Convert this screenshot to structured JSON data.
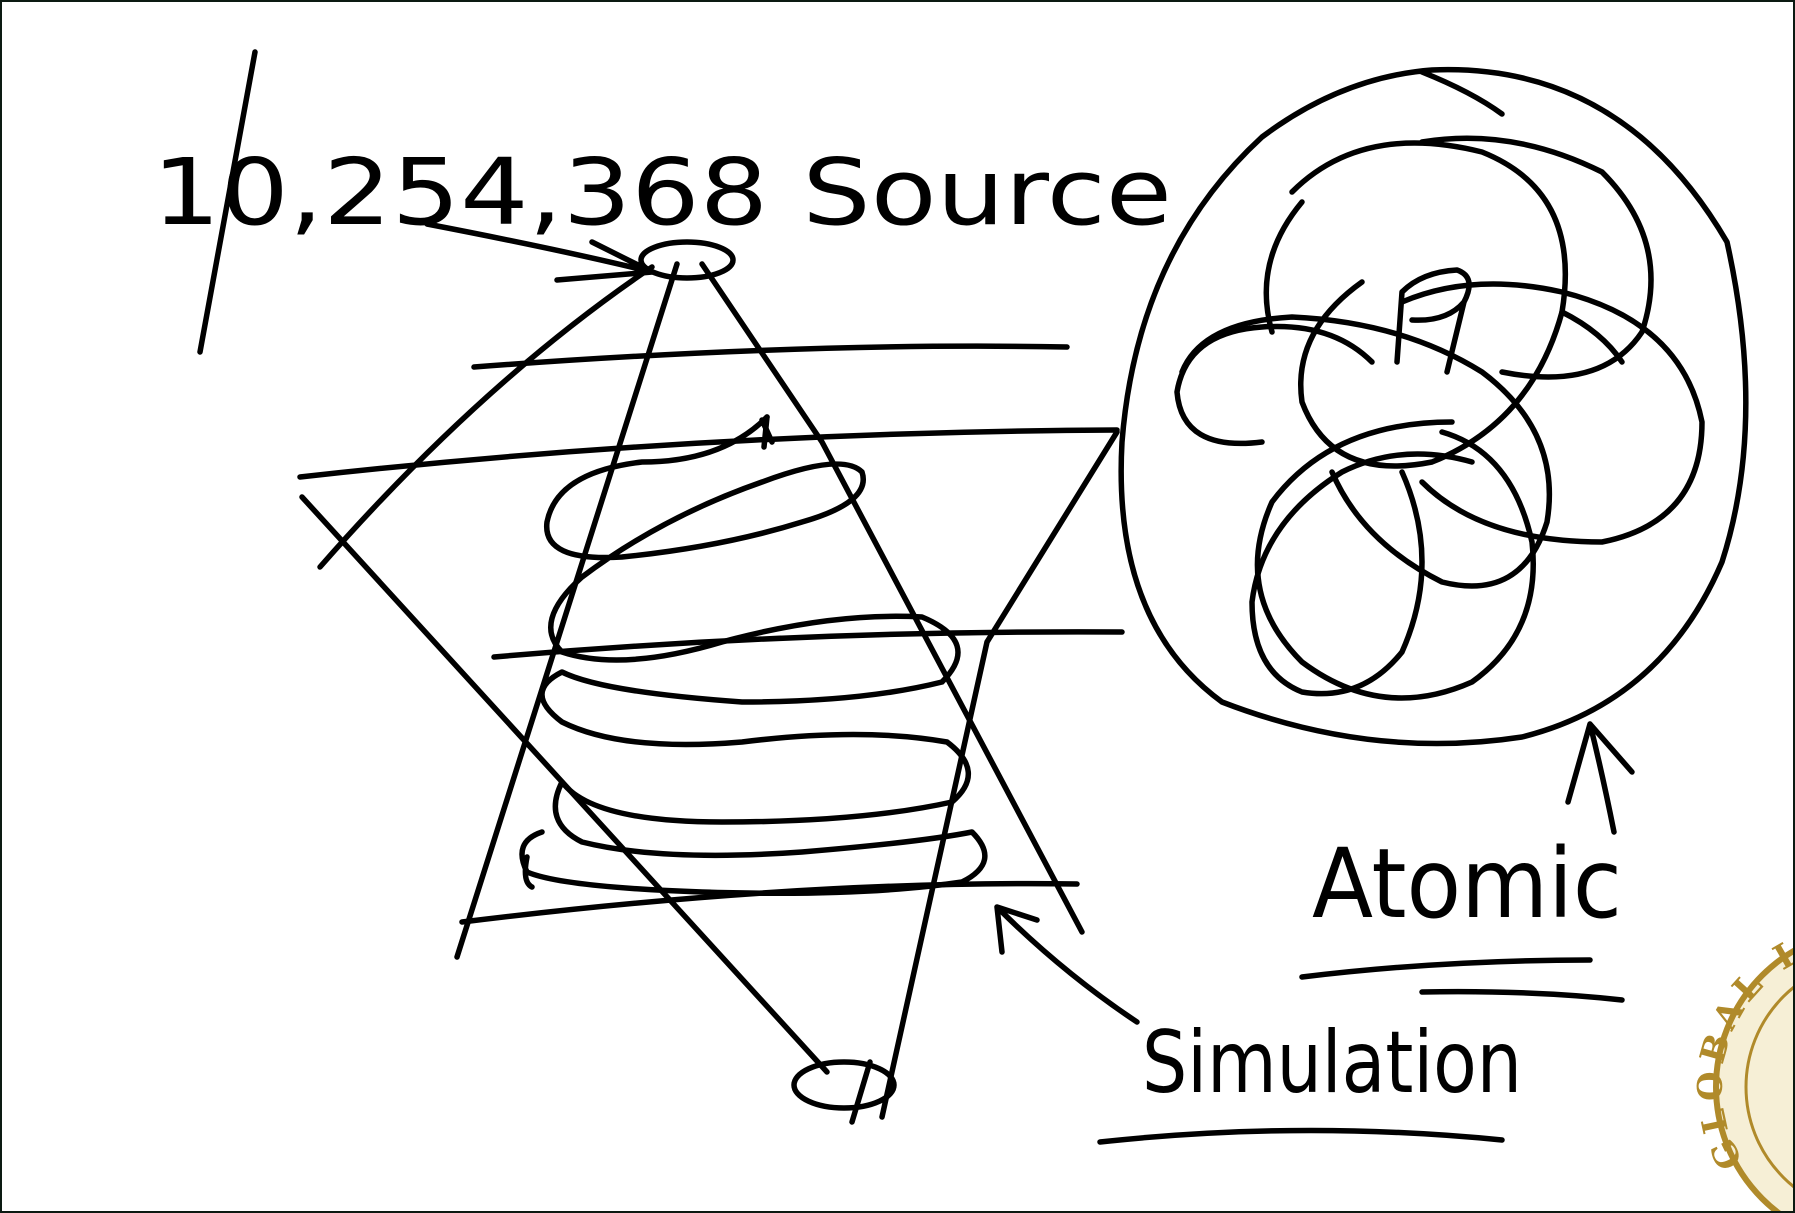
{
  "whiteboard": {
    "source_label": "10,254,368 Source",
    "atomic_label": "Atomic",
    "simulation_label": "Simulation"
  },
  "seal": {
    "text": "GLOBAL INTE",
    "color": "#b08a2a"
  },
  "colors": {
    "ink": "#000000",
    "board": "#ffffff",
    "frame": "#0c1a12"
  }
}
